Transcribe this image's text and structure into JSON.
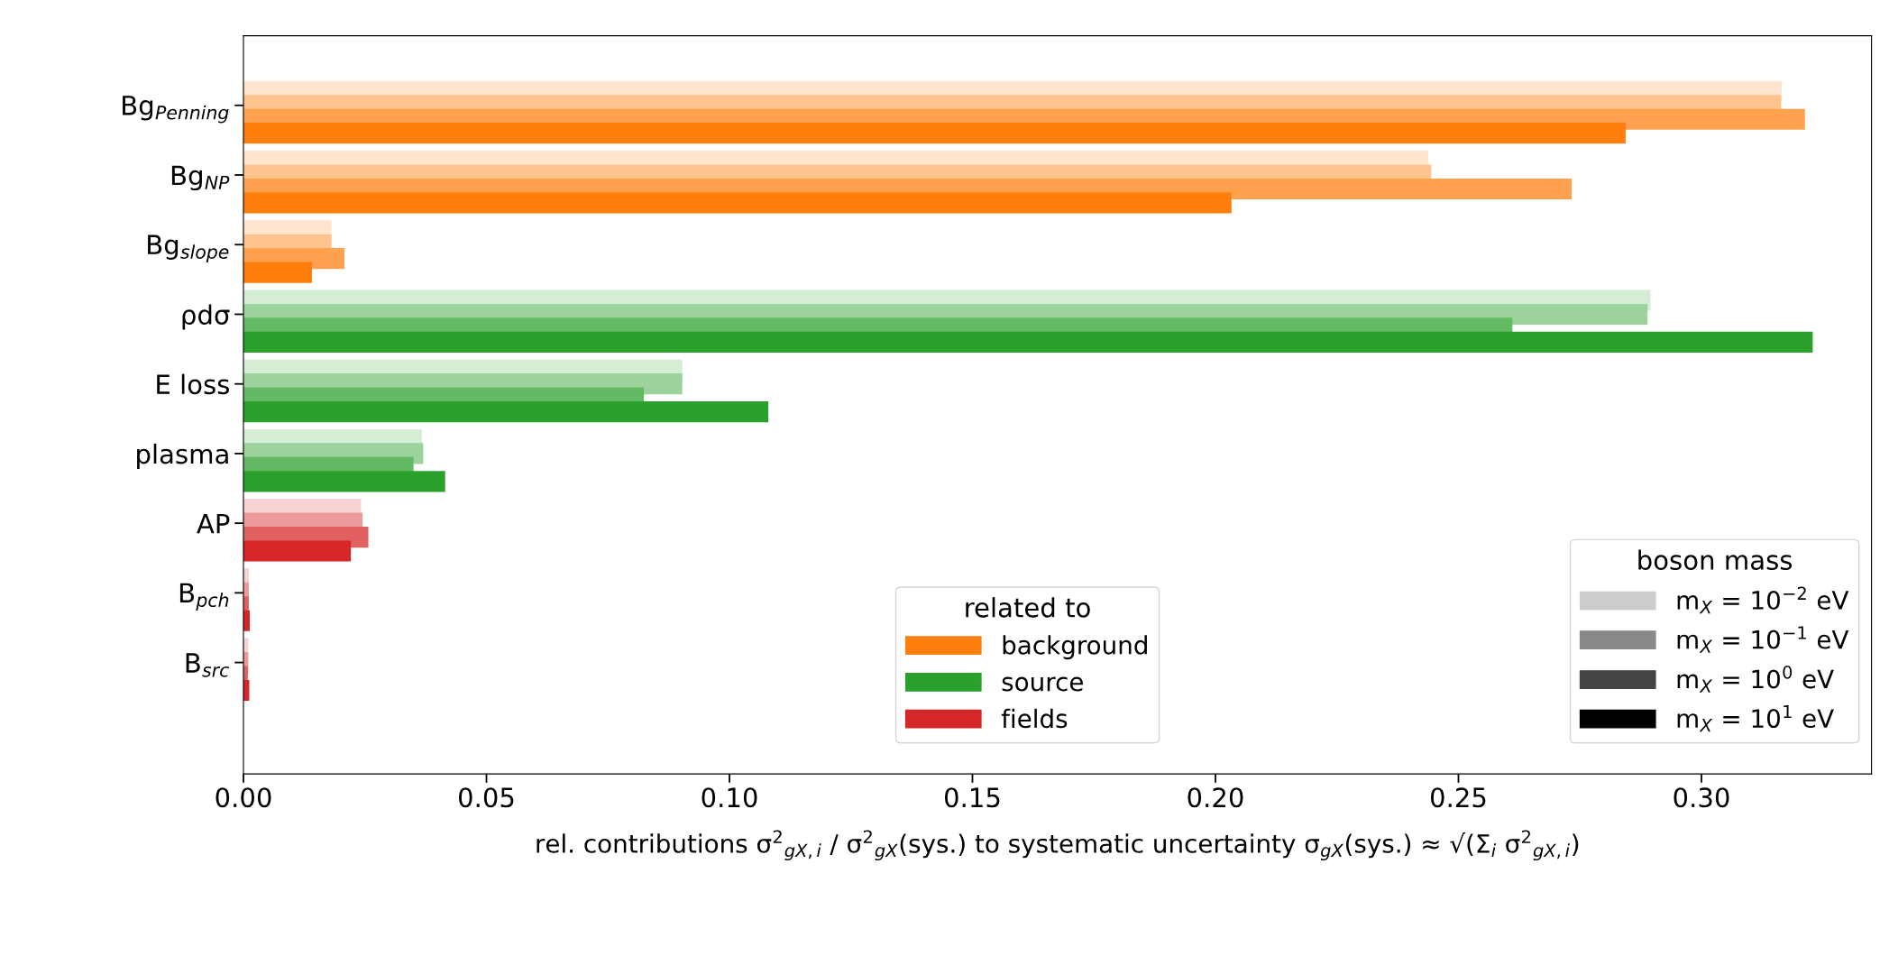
{
  "chart_data": {
    "type": "bar",
    "orientation": "horizontal",
    "categories": [
      "Bg$_{Penning}$",
      "Bg$_{NP}$",
      "Bg$_{slope}$",
      "ρdσ",
      "E loss",
      "plasma",
      "AP",
      "B$_{pch}$",
      "B$_{src}$"
    ],
    "series": [
      {
        "name": "m$_{X}$ = 10$^{−2}$ eV",
        "color": "#cccccc",
        "colors": [
          "#ffe5cf",
          "#ffe5cf",
          "#ffe5cf",
          "#d5ecd5",
          "#d5ecd5",
          "#d5ecd5",
          "#f7d4d4",
          "#f7d4d4",
          "#f7d4d4"
        ],
        "values": [
          0.3165,
          0.2438,
          0.0181,
          0.2895,
          0.0903,
          0.0367,
          0.0242,
          0.0011,
          0.001
        ]
      },
      {
        "name": "m$_{X}$ = 10$^{−1}$ eV",
        "color": "#888888",
        "colors": [
          "#ffc38e",
          "#ffc38e",
          "#ffc38e",
          "#9cd39c",
          "#9cd39c",
          "#9cd39c",
          "#ec9a9b",
          "#ec9a9b",
          "#ec9a9b"
        ],
        "values": [
          0.3164,
          0.2444,
          0.0181,
          0.2889,
          0.0903,
          0.037,
          0.0245,
          0.0011,
          0.001
        ]
      },
      {
        "name": "m$_{X}$ = 10$^{0}$ eV",
        "color": "#444444",
        "colors": [
          "#ffa14e",
          "#ffa14e",
          "#ffa14e",
          "#64b964",
          "#64b964",
          "#64b964",
          "#e16161",
          "#e16161",
          "#e16161"
        ],
        "values": [
          0.3213,
          0.2733,
          0.0208,
          0.2611,
          0.0824,
          0.035,
          0.0257,
          0.0011,
          0.0009
        ]
      },
      {
        "name": "m$_{X}$ = 10$^{1}$ eV",
        "color": "#000000",
        "colors": [
          "#ff7f0e",
          "#ff7f0e",
          "#ff7f0e",
          "#2ca02c",
          "#2ca02c",
          "#2ca02c",
          "#d62728",
          "#d62728",
          "#d62728"
        ],
        "values": [
          0.2844,
          0.2033,
          0.0141,
          0.3229,
          0.108,
          0.0415,
          0.0221,
          0.0013,
          0.0012
        ]
      }
    ],
    "xlim": [
      0,
      0.335
    ],
    "xticks": [
      {
        "value": 0,
        "label": "0.00"
      },
      {
        "value": 0.05,
        "label": "0.05"
      },
      {
        "value": 0.1,
        "label": "0.10"
      },
      {
        "value": 0.15,
        "label": "0.15"
      },
      {
        "value": 0.2,
        "label": "0.20"
      },
      {
        "value": 0.25,
        "label": "0.25"
      },
      {
        "value": 0.3,
        "label": "0.30"
      }
    ],
    "xlabel": "rel. contributions σ$^{2}$$_{gX,i}$ / σ$^{2}$$_{gX}$(sys.) to systematic uncertainty σ$_{gX}$(sys.) ≈ √(Σ$_{i}$ σ$^{2}$$_{gX,i}$)",
    "legend": "bottom right",
    "legend_title": "boson mass",
    "annotations": [
      "related to",
      "background",
      "source",
      "fields"
    ],
    "grid": false
  }
}
